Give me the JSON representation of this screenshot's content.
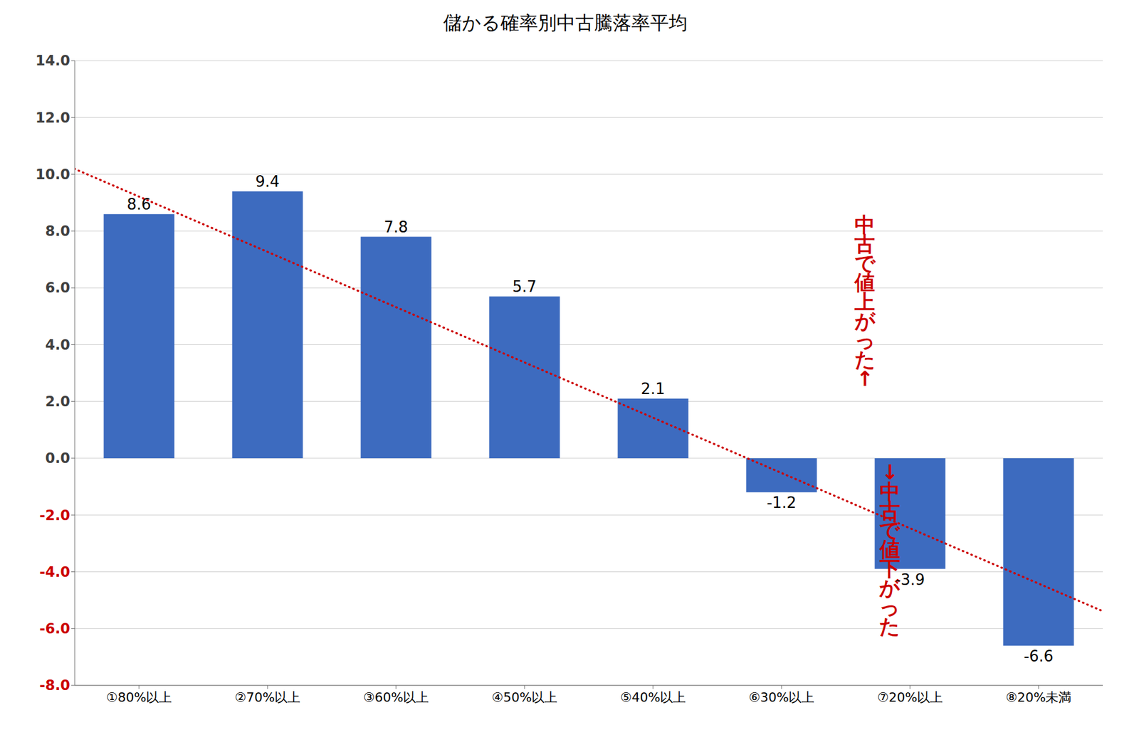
{
  "chart_data": {
    "type": "bar",
    "title": "儲かる確率別中古騰落率平均",
    "categories": [
      "①80%以上",
      "②70%以上",
      "③60%以上",
      "④50%以上",
      "⑤40%以上",
      "⑥30%以上",
      "⑦20%以上",
      "⑧20%未満"
    ],
    "series": [
      {
        "type": "bar",
        "color": "#3D6BBF",
        "values": [
          8.6,
          9.4,
          7.8,
          5.7,
          2.1,
          -1.2,
          -3.9,
          -6.6
        ]
      },
      {
        "type": "line",
        "color": "#CC0000",
        "line_style": "dotted",
        "x": [
          -0.5,
          7.5
        ],
        "values": [
          11.3,
          -6.5
        ]
      }
    ],
    "ylim": [
      -8.0,
      14.0
    ],
    "yticks": [
      {
        "value": -8.0,
        "label": "-8.0",
        "color": "#CC0000"
      },
      {
        "value": -6.0,
        "label": "-6.0",
        "color": "#CC0000"
      },
      {
        "value": -4.0,
        "label": "-4.0",
        "color": "#CC0000"
      },
      {
        "value": -2.0,
        "label": "-2.0",
        "color": "#CC0000"
      },
      {
        "value": 0.0,
        "label": "0.0",
        "color": "#404040"
      },
      {
        "value": 2.0,
        "label": "2.0",
        "color": "#404040"
      },
      {
        "value": 4.0,
        "label": "4.0",
        "color": "#404040"
      },
      {
        "value": 6.0,
        "label": "6.0",
        "color": "#404040"
      },
      {
        "value": 8.0,
        "label": "8.0",
        "color": "#404040"
      },
      {
        "value": 10.0,
        "label": "10.0",
        "color": "#404040"
      },
      {
        "value": 12.0,
        "label": "12.0",
        "color": "#404040"
      },
      {
        "value": 14.0,
        "label": "14.0",
        "color": "#404040"
      }
    ],
    "grid": true,
    "data_labels": true,
    "annotations": [
      {
        "text": "中\n古\nで\n値\n上\nが\nっ\nた\n↑",
        "x": 5.38,
        "y": 5.5,
        "color": "#CC0000"
      },
      {
        "text": "↓\n中\n古\nで\n値\n下\nが\nっ\nた",
        "x": 5.55,
        "y": -3.2,
        "color": "#CC0000"
      }
    ]
  }
}
